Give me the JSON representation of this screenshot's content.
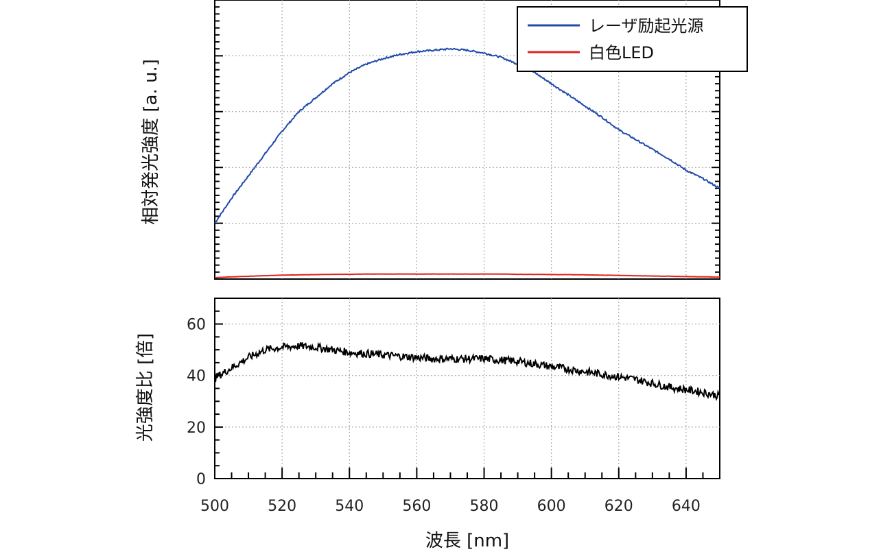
{
  "chart_data": [
    {
      "type": "line",
      "title": "",
      "ylabel": "相対発光強度 [a. u.]",
      "xlim": [
        500,
        650
      ],
      "ylim": [
        0,
        1.0
      ],
      "grid": true,
      "legend_position": "top-right",
      "x": [
        500,
        505,
        510,
        515,
        520,
        525,
        530,
        535,
        540,
        545,
        550,
        555,
        560,
        565,
        570,
        575,
        580,
        585,
        590,
        595,
        600,
        605,
        610,
        615,
        620,
        625,
        630,
        635,
        640,
        645,
        650
      ],
      "series": [
        {
          "name": "レーザ励起光源",
          "color": "#1f4aa8",
          "values": [
            0.2,
            0.29,
            0.37,
            0.45,
            0.53,
            0.6,
            0.65,
            0.7,
            0.74,
            0.77,
            0.79,
            0.805,
            0.815,
            0.82,
            0.825,
            0.82,
            0.81,
            0.795,
            0.77,
            0.74,
            0.7,
            0.66,
            0.62,
            0.58,
            0.535,
            0.5,
            0.465,
            0.43,
            0.39,
            0.36,
            0.325
          ]
        },
        {
          "name": "白色LED",
          "color": "#e0221f",
          "values": [
            0.005,
            0.008,
            0.01,
            0.012,
            0.014,
            0.015,
            0.016,
            0.017,
            0.017,
            0.018,
            0.018,
            0.018,
            0.018,
            0.018,
            0.018,
            0.018,
            0.018,
            0.018,
            0.017,
            0.017,
            0.016,
            0.016,
            0.015,
            0.014,
            0.013,
            0.012,
            0.011,
            0.01,
            0.009,
            0.008,
            0.007
          ]
        }
      ]
    },
    {
      "type": "line",
      "title": "",
      "xlabel": "波長 [nm]",
      "ylabel": "光強度比 [倍]",
      "xlim": [
        500,
        650
      ],
      "ylim": [
        0,
        70
      ],
      "xticks": [
        "500",
        "520",
        "540",
        "560",
        "580",
        "600",
        "620",
        "640"
      ],
      "yticks": [
        "0",
        "20",
        "40",
        "60"
      ],
      "grid": true,
      "x": [
        500,
        505,
        510,
        515,
        520,
        525,
        530,
        535,
        540,
        545,
        550,
        555,
        560,
        565,
        570,
        575,
        580,
        585,
        590,
        595,
        600,
        605,
        610,
        615,
        620,
        625,
        630,
        635,
        640,
        645,
        650
      ],
      "series": [
        {
          "color": "#000000",
          "values": [
            39,
            43,
            47,
            50,
            51,
            51.5,
            51,
            50,
            49,
            48.5,
            48,
            47.5,
            47,
            46.5,
            46.5,
            46.5,
            46.5,
            46,
            45.5,
            44.5,
            43.5,
            42.5,
            41.5,
            40.5,
            39.5,
            38.5,
            37,
            35.5,
            34.5,
            33.5,
            32
          ]
        }
      ]
    }
  ]
}
